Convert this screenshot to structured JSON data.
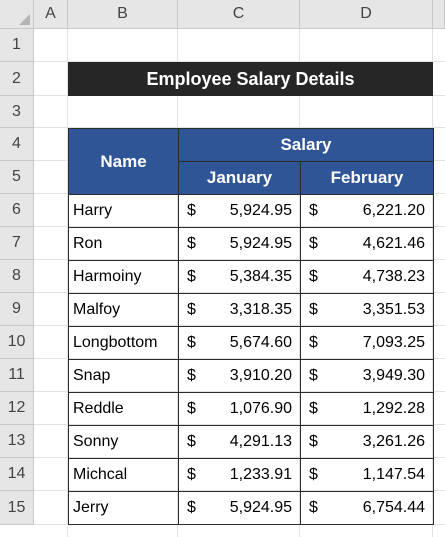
{
  "columns": [
    "A",
    "B",
    "C",
    "D"
  ],
  "rows": [
    "1",
    "2",
    "3",
    "4",
    "5",
    "6",
    "7",
    "8",
    "9",
    "10",
    "11",
    "12",
    "13",
    "14",
    "15"
  ],
  "title": "Employee Salary Details",
  "table": {
    "name_header": "Name",
    "group_header": "Salary",
    "month_headers": [
      "January",
      "February"
    ],
    "currency": "$",
    "records": [
      {
        "name": "Harry",
        "jan": "5,924.95",
        "feb": "6,221.20"
      },
      {
        "name": "Ron",
        "jan": "5,924.95",
        "feb": "4,621.46"
      },
      {
        "name": "Harmoiny",
        "jan": "5,384.35",
        "feb": "4,738.23"
      },
      {
        "name": "Malfoy",
        "jan": "3,318.35",
        "feb": "3,351.53"
      },
      {
        "name": "Longbottom",
        "jan": "5,674.60",
        "feb": "7,093.25"
      },
      {
        "name": "Snap",
        "jan": "3,910.20",
        "feb": "3,949.30"
      },
      {
        "name": "Reddle",
        "jan": "1,076.90",
        "feb": "1,292.28"
      },
      {
        "name": "Sonny",
        "jan": "4,291.13",
        "feb": "3,261.26"
      },
      {
        "name": "Michcal",
        "jan": "1,233.91",
        "feb": "1,147.54"
      },
      {
        "name": "Jerry",
        "jan": "5,924.95",
        "feb": "6,754.44"
      }
    ]
  }
}
